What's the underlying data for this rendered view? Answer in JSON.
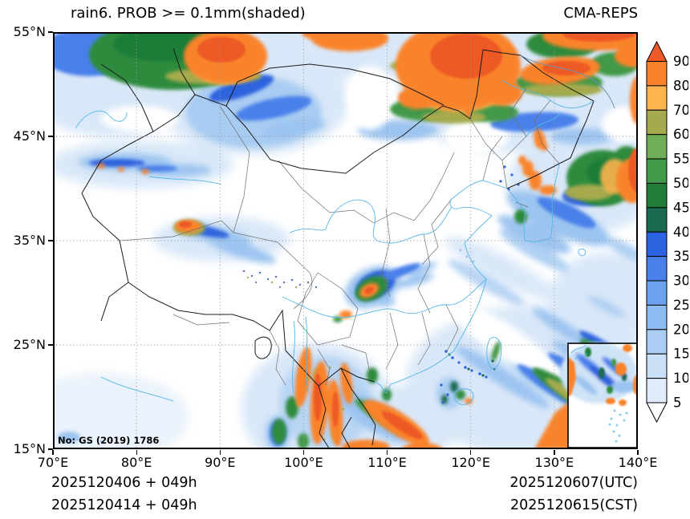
{
  "header": {
    "title": "rain6. PROB >= 0.1mm(shaded)",
    "model": "CMA-REPS"
  },
  "axes": {
    "x_ticks": [
      "70°E",
      "80°E",
      "90°E",
      "100°E",
      "110°E",
      "120°E",
      "130°E",
      "140°E"
    ],
    "y_ticks": [
      "55°N",
      "45°N",
      "35°N",
      "25°N",
      "15°N"
    ]
  },
  "colorbar": {
    "labels": [
      "90",
      "80",
      "70",
      "60",
      "55",
      "50",
      "45",
      "40",
      "35",
      "30",
      "25",
      "20",
      "15",
      "10",
      "5"
    ],
    "cell_colors": [
      "#f9832b",
      "#fdb44e",
      "#a6aa4e",
      "#6fae56",
      "#42994a",
      "#1f7d38",
      "#1a6a52",
      "#2c63e0",
      "#4a80ea",
      "#6ba3ee",
      "#8cbcf2",
      "#abcdf4",
      "#c9e0f7",
      "#e0ecfa"
    ],
    "over_color": "#ee5a28",
    "under_color": "#ffffff"
  },
  "footer": {
    "init_utc": "2025120406 + 049h",
    "init_cst": "2025120414 + 049h",
    "valid_utc": "2025120607(UTC)",
    "valid_cst": "2025120615(CST)"
  },
  "watermark": "No: GS (2019) 1786",
  "chart_data": {
    "type": "heatmap",
    "title": "rain6. PROB >= 0.1mm(shaded)",
    "model": "CMA-REPS",
    "x_range": [
      "70°E",
      "140°E"
    ],
    "y_range": [
      "15°N",
      "55°N"
    ],
    "levels": [
      5,
      10,
      15,
      20,
      25,
      30,
      35,
      40,
      45,
      50,
      55,
      60,
      70,
      80,
      90
    ],
    "legend_position": "right",
    "grid": "dotted"
  }
}
